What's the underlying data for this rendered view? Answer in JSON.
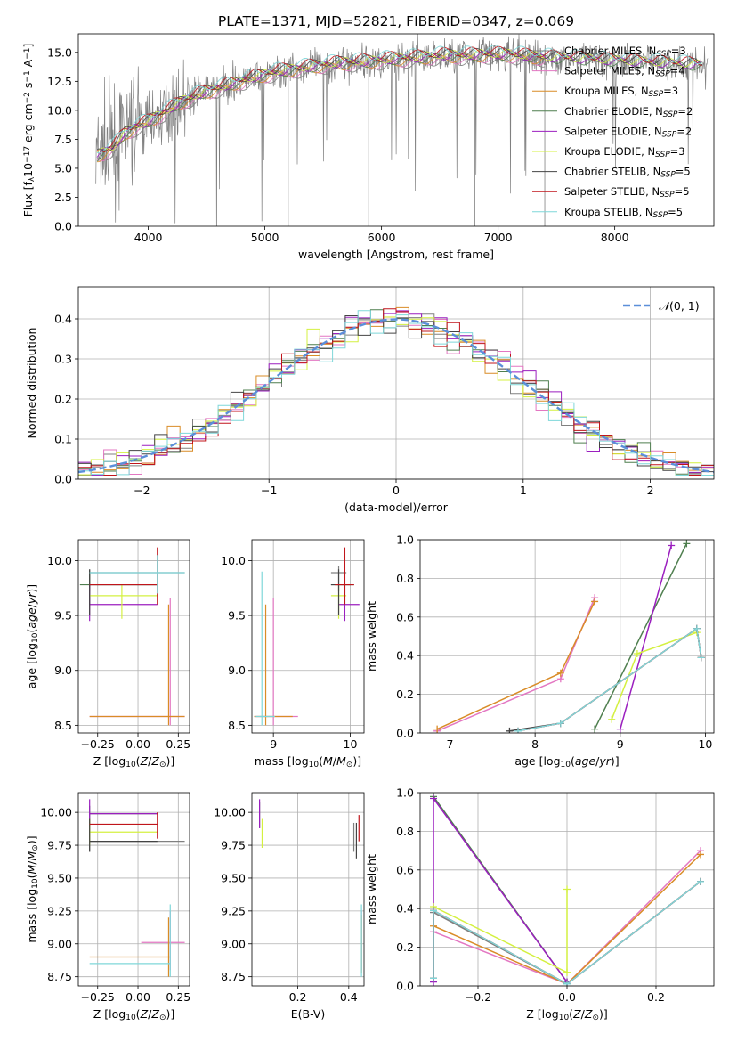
{
  "figure_title": "PLATE=1371, MJD=52821, FIBERID=0347, z=0.069",
  "colors": {
    "chabrier_miles": "#808080",
    "salpeter_miles": "#e377c2",
    "kroupa_miles": "#d98c27",
    "chabrier_elodie": "#4f7f4f",
    "salpeter_elodie": "#9b1fbf",
    "kroupa_elodie": "#d4f040",
    "chabrier_stelib": "#444444",
    "salpeter_stelib": "#c0151b",
    "kroupa_stelib": "#7fd7d9",
    "normal_curve": "#5b8fd9"
  },
  "chart_data": [
    {
      "id": "spectrum",
      "type": "line",
      "xlabel": "wavelength [Angstrom, rest frame]",
      "ylabel": "Flux [f_λ10^-17 erg cm^-2 s^-1 A^-1]",
      "xlim": [
        3400,
        8850
      ],
      "ylim": [
        0,
        16.6
      ],
      "xticks": [
        4000,
        5000,
        6000,
        7000,
        8000
      ],
      "yticks": [
        0.0,
        2.5,
        5.0,
        7.5,
        10.0,
        12.5,
        15.0
      ],
      "grid": false,
      "legend_position": "top-right",
      "observed_trend": {
        "x": [
          3550,
          3700,
          3800,
          3900,
          4000,
          4100,
          4300,
          4500,
          4700,
          4900,
          5100,
          5300,
          5500,
          5700,
          5900,
          6100,
          6300,
          6500,
          6700,
          6900,
          7100,
          7300,
          7500,
          7700,
          7900,
          8100,
          8300,
          8500,
          8700,
          8800
        ],
        "y": [
          6.0,
          6.8,
          8.0,
          8.6,
          9.0,
          9.6,
          10.8,
          11.6,
          12.2,
          12.8,
          13.3,
          13.6,
          13.9,
          14.1,
          14.2,
          14.4,
          14.5,
          14.7,
          14.7,
          14.8,
          14.8,
          14.6,
          14.5,
          14.4,
          14.3,
          14.2,
          14.1,
          14.0,
          13.9,
          13.8
        ]
      },
      "series": [
        {
          "name": "Chabrier MILES, N_SSP=3"
        },
        {
          "name": "Salpeter MILES, N_SSP=4"
        },
        {
          "name": "Kroupa MILES, N_SSP=3"
        },
        {
          "name": "Chabrier ELODIE, N_SSP=2"
        },
        {
          "name": "Salpeter ELODIE, N_SSP=2"
        },
        {
          "name": "Kroupa ELODIE, N_SSP=3"
        },
        {
          "name": "Chabrier STELIB, N_SSP=5"
        },
        {
          "name": "Salpeter STELIB, N_SSP=5"
        },
        {
          "name": "Kroupa STELIB, N_SSP=5"
        }
      ]
    },
    {
      "id": "residuals",
      "type": "area",
      "xlabel": "(data-model)/error",
      "ylabel": "Normed distribution",
      "xlim": [
        -2.5,
        2.5
      ],
      "ylim": [
        0,
        0.48
      ],
      "xticks": [
        -2,
        -1,
        0,
        1,
        2
      ],
      "yticks": [
        0.0,
        0.1,
        0.2,
        0.3,
        0.4
      ],
      "grid": true,
      "legend_position": "top-right",
      "legend": "N(0,1)",
      "bin_width": 0.1
    },
    {
      "id": "age-vs-Z",
      "type": "scatter",
      "xlabel": "Z [log10(Z/Z⊙)]",
      "ylabel": "age [log10(age/yr)]",
      "xlim": [
        -0.37,
        0.32
      ],
      "ylim": [
        8.43,
        10.19
      ],
      "xticks": [
        -0.25,
        0.0,
        0.25
      ],
      "xtick_labels": [
        "−0.25",
        "0.00",
        "0.25"
      ],
      "yticks": [
        8.5,
        9.0,
        9.5,
        10.0
      ],
      "grid": true,
      "points": [
        {
          "c": "chabrier_miles",
          "x": -0.3,
          "y": 9.89,
          "xlo": -0.3,
          "xhi": 0.29,
          "ylo": 9.72,
          "yhi": 9.92
        },
        {
          "c": "salpeter_miles",
          "x": 0.2,
          "y": 8.58,
          "xlo": -0.3,
          "xhi": 0.29,
          "ylo": 8.5,
          "yhi": 9.66
        },
        {
          "c": "kroupa_miles",
          "x": 0.19,
          "y": 8.58,
          "xlo": -0.3,
          "xhi": 0.29,
          "ylo": 8.5,
          "yhi": 9.6
        },
        {
          "c": "chabrier_elodie",
          "x": -0.3,
          "y": 9.78,
          "xlo": -0.36,
          "xhi": 0.12,
          "ylo": 9.6,
          "yhi": 9.9
        },
        {
          "c": "salpeter_elodie",
          "x": -0.3,
          "y": 9.6,
          "xlo": -0.3,
          "xhi": 0.12,
          "ylo": 9.45,
          "yhi": 9.78
        },
        {
          "c": "kroupa_elodie",
          "x": -0.1,
          "y": 9.68,
          "xlo": -0.3,
          "xhi": 0.12,
          "ylo": 9.47,
          "yhi": 9.78
        },
        {
          "c": "chabrier_stelib",
          "x": -0.3,
          "y": 9.78,
          "xlo": -0.3,
          "xhi": 0.12,
          "ylo": 9.5,
          "yhi": 9.92
        },
        {
          "c": "salpeter_stelib",
          "x": 0.12,
          "y": 9.78,
          "xlo": -0.3,
          "xhi": 0.12,
          "ylo": 9.6,
          "yhi": 10.12
        },
        {
          "c": "kroupa_stelib",
          "x": 0.12,
          "y": 9.89,
          "xlo": -0.3,
          "xhi": 0.29,
          "ylo": 9.7,
          "yhi": 10.05
        }
      ]
    },
    {
      "id": "age-vs-mass",
      "type": "scatter",
      "xlabel": "mass [log10(M/M⊙)]",
      "ylabel": "",
      "xlim": [
        8.72,
        10.18
      ],
      "ylim": [
        8.43,
        10.19
      ],
      "xticks": [
        9,
        10
      ],
      "yticks": [
        8.5,
        9.0,
        9.5,
        10.0
      ],
      "grid": true,
      "points": [
        {
          "c": "chabrier_miles",
          "x": 9.85,
          "y": 9.89,
          "xlo": 9.75,
          "xhi": 9.95,
          "ylo": 9.72,
          "yhi": 9.95
        },
        {
          "c": "salpeter_miles",
          "x": 9.0,
          "y": 8.58,
          "xlo": 8.75,
          "xhi": 9.32,
          "ylo": 8.5,
          "yhi": 9.66
        },
        {
          "c": "kroupa_miles",
          "x": 8.9,
          "y": 8.58,
          "xlo": 8.75,
          "xhi": 9.25,
          "ylo": 8.5,
          "yhi": 9.6
        },
        {
          "c": "chabrier_elodie",
          "x": 9.93,
          "y": 9.78,
          "xlo": 9.75,
          "xhi": 10.0,
          "ylo": 9.6,
          "yhi": 9.9
        },
        {
          "c": "salpeter_elodie",
          "x": 9.93,
          "y": 9.6,
          "xlo": 9.85,
          "xhi": 10.12,
          "ylo": 9.45,
          "yhi": 9.78
        },
        {
          "c": "kroupa_elodie",
          "x": 9.85,
          "y": 9.68,
          "xlo": 9.75,
          "xhi": 9.95,
          "ylo": 9.47,
          "yhi": 9.78
        },
        {
          "c": "chabrier_stelib",
          "x": 9.85,
          "y": 9.78,
          "xlo": 9.75,
          "xhi": 10.05,
          "ylo": 9.5,
          "yhi": 9.92
        },
        {
          "c": "salpeter_stelib",
          "x": 9.93,
          "y": 9.78,
          "xlo": 9.8,
          "xhi": 10.05,
          "ylo": 9.6,
          "yhi": 10.12
        },
        {
          "c": "kroupa_stelib",
          "x": 8.85,
          "y": 8.58,
          "xlo": 8.77,
          "xhi": 9.02,
          "ylo": 8.5,
          "yhi": 9.9
        }
      ]
    },
    {
      "id": "massweight-vs-age",
      "type": "line",
      "xlabel": "age [log10(age/yr)]",
      "ylabel": "mass weight",
      "xlim": [
        6.65,
        10.1
      ],
      "ylim": [
        0,
        1.0
      ],
      "xticks": [
        7,
        8,
        9,
        10
      ],
      "yticks": [
        0.0,
        0.2,
        0.4,
        0.6,
        0.8,
        1.0
      ],
      "grid": true,
      "series": [
        {
          "c": "chabrier_miles",
          "x": [
            7.8,
            8.3,
            9.9,
            9.95
          ],
          "y": [
            0.01,
            0.05,
            0.54,
            0.39
          ]
        },
        {
          "c": "salpeter_miles",
          "x": [
            6.85,
            8.3,
            8.7
          ],
          "y": [
            0.01,
            0.28,
            0.7
          ]
        },
        {
          "c": "kroupa_miles",
          "x": [
            6.85,
            8.3,
            8.7
          ],
          "y": [
            0.02,
            0.31,
            0.68
          ]
        },
        {
          "c": "chabrier_elodie",
          "x": [
            8.7,
            9.78
          ],
          "y": [
            0.02,
            0.98
          ]
        },
        {
          "c": "salpeter_elodie",
          "x": [
            9.0,
            9.6
          ],
          "y": [
            0.02,
            0.97
          ]
        },
        {
          "c": "kroupa_elodie",
          "x": [
            8.9,
            9.2,
            9.9
          ],
          "y": [
            0.07,
            0.41,
            0.52
          ]
        },
        {
          "c": "chabrier_stelib",
          "x": [
            7.7,
            8.3,
            9.9,
            9.95
          ],
          "y": [
            0.01,
            0.05,
            0.54,
            0.39
          ]
        },
        {
          "c": "salpeter_stelib",
          "x": [
            7.8,
            8.3,
            9.9,
            9.95
          ],
          "y": [
            0.01,
            0.05,
            0.54,
            0.39
          ]
        },
        {
          "c": "kroupa_stelib",
          "x": [
            7.8,
            8.3,
            9.9,
            9.95
          ],
          "y": [
            0.01,
            0.05,
            0.54,
            0.39
          ]
        }
      ]
    },
    {
      "id": "mass-vs-Z",
      "type": "scatter",
      "xlabel": "Z [log10(Z/Z⊙)]",
      "ylabel": "mass [log10(M/M⊙)]",
      "xlim": [
        -0.37,
        0.32
      ],
      "ylim": [
        8.68,
        10.15
      ],
      "xticks": [
        -0.25,
        0.0,
        0.25
      ],
      "xtick_labels": [
        "−0.25",
        "0.00",
        "0.25"
      ],
      "yticks": [
        8.75,
        9.0,
        9.25,
        9.5,
        9.75,
        10.0
      ],
      "grid": true,
      "points": [
        {
          "c": "chabrier_miles",
          "x": -0.3,
          "y": 9.78,
          "xlo": -0.3,
          "xhi": 0.29,
          "ylo": 9.7,
          "yhi": 9.85
        },
        {
          "c": "salpeter_miles",
          "x": 0.2,
          "y": 9.01,
          "xlo": 0.02,
          "xhi": 0.29,
          "ylo": 8.8,
          "yhi": 9.25
        },
        {
          "c": "kroupa_miles",
          "x": 0.19,
          "y": 8.9,
          "xlo": -0.3,
          "xhi": 0.2,
          "ylo": 8.75,
          "yhi": 9.2
        },
        {
          "c": "chabrier_elodie",
          "x": -0.3,
          "y": 9.99,
          "xlo": -0.3,
          "xhi": 0.12,
          "ylo": 9.85,
          "yhi": 10.05
        },
        {
          "c": "salpeter_elodie",
          "x": -0.3,
          "y": 9.99,
          "xlo": -0.3,
          "xhi": 0.12,
          "ylo": 9.9,
          "yhi": 10.1
        },
        {
          "c": "kroupa_elodie",
          "x": -0.3,
          "y": 9.85,
          "xlo": -0.3,
          "xhi": 0.12,
          "ylo": 9.75,
          "yhi": 9.95
        },
        {
          "c": "chabrier_stelib",
          "x": -0.3,
          "y": 9.78,
          "xlo": -0.3,
          "xhi": 0.12,
          "ylo": 9.7,
          "yhi": 9.95
        },
        {
          "c": "salpeter_stelib",
          "x": 0.12,
          "y": 9.91,
          "xlo": -0.3,
          "xhi": 0.12,
          "ylo": 9.8,
          "yhi": 10.0
        },
        {
          "c": "kroupa_stelib",
          "x": 0.2,
          "y": 8.85,
          "xlo": -0.3,
          "xhi": 0.2,
          "ylo": 8.75,
          "yhi": 9.3
        }
      ]
    },
    {
      "id": "mass-vs-ebv",
      "type": "scatter",
      "xlabel": "E(B-V)",
      "ylabel": "",
      "xlim": [
        0.02,
        0.46
      ],
      "ylim": [
        8.68,
        10.15
      ],
      "xticks": [
        0.2,
        0.4
      ],
      "yticks": [
        8.75,
        9.0,
        9.25,
        9.5,
        9.75,
        10.0
      ],
      "grid": true,
      "points": [
        {
          "c": "chabrier_miles",
          "x": 0.42,
          "y": 9.78,
          "ylo": 9.7,
          "yhi": 9.92
        },
        {
          "c": "salpeter_miles",
          "x": 0.45,
          "y": 9.01,
          "ylo": 8.8,
          "yhi": 9.25
        },
        {
          "c": "kroupa_miles",
          "x": 0.45,
          "y": 8.9,
          "ylo": 8.78,
          "yhi": 9.22
        },
        {
          "c": "chabrier_elodie",
          "x": 0.05,
          "y": 9.99,
          "ylo": 9.88,
          "yhi": 10.08
        },
        {
          "c": "salpeter_elodie",
          "x": 0.05,
          "y": 9.99,
          "ylo": 9.88,
          "yhi": 10.1
        },
        {
          "c": "kroupa_elodie",
          "x": 0.06,
          "y": 9.85,
          "ylo": 9.73,
          "yhi": 9.95
        },
        {
          "c": "chabrier_stelib",
          "x": 0.43,
          "y": 9.78,
          "ylo": 9.65,
          "yhi": 9.92
        },
        {
          "c": "salpeter_stelib",
          "x": 0.44,
          "y": 9.91,
          "ylo": 9.78,
          "yhi": 9.98
        },
        {
          "c": "kroupa_stelib",
          "x": 0.45,
          "y": 8.85,
          "ylo": 8.75,
          "yhi": 9.3
        }
      ]
    },
    {
      "id": "massweight-vs-Z",
      "type": "line",
      "xlabel": "Z [log10(Z/Z⊙)]",
      "ylabel": "mass weight",
      "xlim": [
        -0.33,
        0.33
      ],
      "ylim": [
        0,
        1.0
      ],
      "xticks": [
        -0.2,
        0.0,
        0.2
      ],
      "xtick_labels": [
        "−0.2",
        "0.0",
        "0.2"
      ],
      "yticks": [
        0.0,
        0.2,
        0.4,
        0.6,
        0.8,
        1.0
      ],
      "grid": true,
      "series": [
        {
          "c": "chabrier_miles",
          "x": [
            -0.3,
            -0.3,
            0.0,
            0.3
          ],
          "y": [
            0.04,
            0.38,
            0.01,
            0.54
          ]
        },
        {
          "c": "salpeter_miles",
          "x": [
            -0.3,
            0.0,
            0.3
          ],
          "y": [
            0.28,
            0.01,
            0.7
          ]
        },
        {
          "c": "kroupa_miles",
          "x": [
            -0.3,
            0.0,
            0.3
          ],
          "y": [
            0.31,
            0.01,
            0.68
          ]
        },
        {
          "c": "chabrier_elodie",
          "x": [
            -0.3,
            0.0
          ],
          "y": [
            0.98,
            0.02
          ]
        },
        {
          "c": "salpeter_elodie",
          "x": [
            -0.3,
            -0.3,
            0.0
          ],
          "y": [
            0.02,
            0.97,
            0.02
          ]
        },
        {
          "c": "kroupa_elodie",
          "x": [
            -0.3,
            0.0,
            0.0
          ],
          "y": [
            0.41,
            0.07,
            0.5
          ]
        },
        {
          "c": "chabrier_stelib",
          "x": [
            -0.3,
            -0.3,
            0.0,
            0.3
          ],
          "y": [
            0.04,
            0.39,
            0.01,
            0.54
          ]
        },
        {
          "c": "salpeter_stelib",
          "x": [
            -0.3,
            -0.3,
            0.0,
            0.3
          ],
          "y": [
            0.04,
            0.39,
            0.01,
            0.54
          ]
        },
        {
          "c": "kroupa_stelib",
          "x": [
            -0.3,
            -0.3,
            0.0,
            0.3
          ],
          "y": [
            0.04,
            0.39,
            0.01,
            0.54
          ]
        }
      ]
    }
  ]
}
